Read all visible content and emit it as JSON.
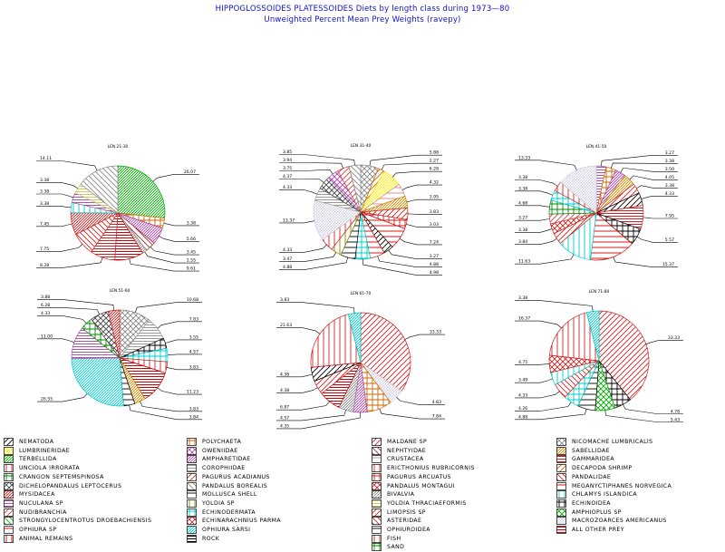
{
  "title": "HIPPOGLOSSOIDES PLATESSOIDES Diets by length class during 1973—80",
  "subtitle": "Unweighted Percent Mean Prey Weights (ravepy)",
  "colors": {
    "NEMATODA": "#000000",
    "LUMBRINERIDAE": "#ffee00",
    "TERBELLIDA": "#00aa00",
    "UNCIOLA IRRORATA": "#cc2222",
    "CRANGON SEPTEMSPINOSA": "#008800",
    "DICHELOPANDALUS LEPTOCERUS": "#444444",
    "MYSIDACEA": "#cc2222",
    "NUCULANA SP": "#aa55aa",
    "NUDIBRANCHIA": "#cc4444",
    "STRONGYLOCENTROTUS DROEBACHIENSIS": "#00aa00",
    "OPHIURA SP": "#cc0000",
    "ANIMAL REMAINS": "#cc0000",
    "POLYCHAETA": "#cc6600",
    "OWENIIDAE": "#aa44aa",
    "AMPHARETIDAE": "#aa44aa",
    "COROPHIIDAE": "#999999",
    "PAGURUS ACADIANUS": "#cc2222",
    "PANDALUS BOREALIS": "#888888",
    "MOLLUSCA SHELL": "#000000",
    "YOLDIA SP": "#888800",
    "ECHINODERMATA": "#00cccc",
    "ECHINARACHNIUS PARMA": "#cc2222",
    "OPHIURA SARSI": "#00cccc",
    "ROCK": "#000000",
    "MALDANE SP": "#cc2222",
    "NEPHTYIDAE": "#993333",
    "CRUSTACEA": "#cc8888",
    "ERICTHONIUS RUBRICORNIS": "#cc2222",
    "PAGURUS ARCUATUS": "#cc2222",
    "PANDALUS MONTAGUI": "#cc2222",
    "BIVALVIA": "#888888",
    "YOLDIA THRACIAEFORMIS": "#cccc66",
    "LIMOPSIS SP": "#cc2222",
    "ASTERIDAE": "#cc2222",
    "OPHIUROIDEA": "#000000",
    "FISH": "#cc2222",
    "SAND": "#008800",
    "NICOMACHE LUMBRICALIS": "#888888",
    "SABELLIDAE": "#cc8800",
    "GAMMARIDEA": "#cc2222",
    "DECAPODA SHRIMP": "#cc6600",
    "PANDALIDAE": "#cc2222",
    "MEGANYCTIPHANES NORVEGICA": "#cc0000",
    "CHLAMYS ISLANDICA": "#00cccc",
    "ECHINOIDEA": "#000000",
    "AMPHIOPLUS SP": "#00aa00",
    "MACROZOARCES AMERICANUS": "#ccccdd",
    "ALL OTHER PREY": "#cc0000"
  },
  "legend": [
    [
      "NEMATODA",
      "LUMBRINERIDAE",
      "TERBELLIDA",
      "UNCIOLA IRRORATA",
      "CRANGON SEPTEMSPINOSA",
      "DICHELOPANDALUS LEPTOCERUS",
      "MYSIDACEA",
      "NUCULANA SP",
      "NUDIBRANCHIA",
      "STRONGYLOCENTROTUS DROEBACHIENSIS",
      "OPHIURA SP",
      "ANIMAL REMAINS"
    ],
    [
      "POLYCHAETA",
      "OWENIIDAE",
      "AMPHARETIDAE",
      "COROPHIIDAE",
      "PAGURUS ACADIANUS",
      "PANDALUS BOREALIS",
      "MOLLUSCA SHELL",
      "YOLDIA SP",
      "ECHINODERMATA",
      "ECHINARACHNIUS PARMA",
      "OPHIURA SARSI",
      "ROCK"
    ],
    [
      "MALDANE SP",
      "NEPHTYIDAE",
      "CRUSTACEA",
      "ERICTHONIUS RUBRICORNIS",
      "PAGURUS ARCUATUS",
      "PANDALUS MONTAGUI",
      "BIVALVIA",
      "YOLDIA THRACIAEFORMIS",
      "LIMOPSIS SP",
      "ASTERIDAE",
      "OPHIUROIDEA",
      "FISH",
      "SAND"
    ],
    [
      "NICOMACHE LUMBRICALIS",
      "SABELLIDAE",
      "GAMMARIDEA",
      "DECAPODA SHRIMP",
      "PANDALIDAE",
      "MEGANYCTIPHANES NORVEGICA",
      "CHLAMYS ISLANDICA",
      "ECHINOIDEA",
      "AMPHIOPLUS SP",
      "MACROZOARCES AMERICANUS",
      "ALL OTHER PREY"
    ]
  ],
  "chart_data": [
    {
      "type": "pie",
      "title": "LEN 21-30",
      "slices": [
        {
          "label": "TERBELLIDA",
          "value": 26.07,
          "text": "26.07"
        },
        {
          "label": "POLYCHAETA",
          "value": 3.38,
          "text": "3.38"
        },
        {
          "label": "AMPHARETIDAE",
          "value": 5.66,
          "text": "5.66"
        },
        {
          "label": "NEPHTYIDAE",
          "value": 3.45,
          "text": "3.45"
        },
        {
          "label": "BIVALVIA",
          "value": 1.55,
          "text": "1.55"
        },
        {
          "label": "ALL OTHER PREY",
          "value": 9.61,
          "text": "9.61"
        },
        {
          "label": "GAMMARIDEA",
          "value": 8.28,
          "text": "8.28"
        },
        {
          "label": "PANDALIDAE",
          "value": 7.75,
          "text": "7.75"
        },
        {
          "label": "MYSIDACEA",
          "value": 7.45,
          "text": "7.45"
        },
        {
          "label": "CHLAMYS ISLANDICA",
          "value": 3.38,
          "text": "3.38"
        },
        {
          "label": "NUCULANA SP",
          "value": 3.38,
          "text": "3.38"
        },
        {
          "label": "YOLDIA THRACIAEFORMIS",
          "value": 3.38,
          "text": "3.38"
        },
        {
          "label": "PANDALUS BOREALIS",
          "value": 14.11,
          "text": "14.11"
        }
      ]
    },
    {
      "type": "pie",
      "title": "LEN 31-40",
      "slices": [
        {
          "label": "NICOMACHE LUMBRICALIS",
          "value": 5.88,
          "text": "5.88"
        },
        {
          "label": "DECAPODA SHRIMP",
          "value": 2.27,
          "text": "2.27"
        },
        {
          "label": "LUMBRINERIDAE",
          "value": 6.28,
          "text": "6.28"
        },
        {
          "label": "CRUSTACEA",
          "value": 4.32,
          "text": "4.32"
        },
        {
          "label": "SABELLIDAE",
          "value": 3.95,
          "text": "3.95"
        },
        {
          "label": "MALDANE SP",
          "value": 3.83,
          "text": "3.83"
        },
        {
          "label": "PAGURUS ARCUATUS",
          "value": 3.03,
          "text": "3.03"
        },
        {
          "label": "MEGANYCTIPHANES NORVEGICA",
          "value": 7.24,
          "text": "7.24"
        },
        {
          "label": "NEMATODA",
          "value": 3.27,
          "text": "3.27"
        },
        {
          "label": "OPHIURA SP",
          "value": 4.88,
          "text": "4.88"
        },
        {
          "label": "ECHINODERMATA",
          "value": 4.98,
          "text": "4.98"
        },
        {
          "label": "MOLLUSCA SHELL",
          "value": 4.88,
          "text": "4.88"
        },
        {
          "label": "YOLDIA SP",
          "value": 3.47,
          "text": "3.47"
        },
        {
          "label": "UNCIOLA IRRORATA",
          "value": 4.33,
          "text": "4.33"
        },
        {
          "label": "MACROZOARCES AMERICANUS",
          "value": 13.37,
          "text": "13.37"
        },
        {
          "label": "COROPHIIDAE",
          "value": 4.33,
          "text": "4.33"
        },
        {
          "label": "DICHELOPANDALUS LEPTOCERUS",
          "value": 4.37,
          "text": "4.37"
        },
        {
          "label": "OWENIIDAE",
          "value": 3.75,
          "text": "3.75"
        },
        {
          "label": "NUDIBRANCHIA",
          "value": 3.94,
          "text": "3.94"
        },
        {
          "label": "PANDALUS BOREALIS",
          "value": 3.85,
          "text": "3.85"
        }
      ]
    },
    {
      "type": "pie",
      "title": "LEN 41-50",
      "slices": [
        {
          "label": "NUCULANA SP",
          "value": 3.27,
          "text": "3.27"
        },
        {
          "label": "POLYCHAETA",
          "value": 3.38,
          "text": "3.38"
        },
        {
          "label": "AMPHARETIDAE",
          "value": 3.5,
          "text": "3.50"
        },
        {
          "label": "SABELLIDAE",
          "value": 4.05,
          "text": "4.05"
        },
        {
          "label": "PAGURUS ACADIANUS",
          "value": 3.38,
          "text": "3.38"
        },
        {
          "label": "NEMATODA",
          "value": 4.33,
          "text": "4.33"
        },
        {
          "label": "GAMMARIDEA",
          "value": 7.95,
          "text": "7.95"
        },
        {
          "label": "ECHINOIDEA",
          "value": 5.57,
          "text": "5.57"
        },
        {
          "label": "MEGANYCTIPHANES NORVEGICA",
          "value": 15.37,
          "text": "15.37"
        },
        {
          "label": "CHLAMYS ISLANDICA",
          "value": 11.63,
          "text": "11.63"
        },
        {
          "label": "LIMOPSIS SP",
          "value": 3.84,
          "text": "3.84"
        },
        {
          "label": "ECHINARACHNIUS PARMA",
          "value": 3.38,
          "text": "3.38"
        },
        {
          "label": "NUDIBRANCHIA",
          "value": 3.27,
          "text": "3.27"
        },
        {
          "label": "CRANGON SEPTEMSPINOSA",
          "value": 4.68,
          "text": "4.68"
        },
        {
          "label": "ECHINODERMATA",
          "value": 3.38,
          "text": "3.38"
        },
        {
          "label": "UNCIOLA IRRORATA",
          "value": 3.38,
          "text": "3.38"
        },
        {
          "label": "MACROZOARCES AMERICANUS",
          "value": 13.33,
          "text": "13.33"
        }
      ]
    },
    {
      "type": "pie",
      "title": "LEN 51-60",
      "slices": [
        {
          "label": "NICOMACHE LUMBRICALIS",
          "value": 10.68,
          "text": "10.68"
        },
        {
          "label": "COROPHIIDAE",
          "value": 7.83,
          "text": "7.83"
        },
        {
          "label": "ECHINOIDEA",
          "value": 3.55,
          "text": "3.55"
        },
        {
          "label": "ECHINODERMATA",
          "value": 4.57,
          "text": "4.57"
        },
        {
          "label": "ERICTHONIUS RUBRICORNIS",
          "value": 3.83,
          "text": "3.83"
        },
        {
          "label": "ALL OTHER PREY",
          "value": 11.23,
          "text": "11.23"
        },
        {
          "label": "SABELLIDAE",
          "value": 3.83,
          "text": "3.83"
        },
        {
          "label": "OPHIUROIDEA",
          "value": 3.84,
          "text": "3.84"
        },
        {
          "label": "OPHIURA SARSI",
          "value": 26.55,
          "text": "26.55"
        },
        {
          "label": "NUCULANA SP",
          "value": 11.0,
          "text": "11.00"
        },
        {
          "label": "CRANGON SEPTEMSPINOSA",
          "value": 4.33,
          "text": "4.33"
        },
        {
          "label": "DICHELOPANDALUS LEPTOCERUS",
          "value": 6.28,
          "text": "6.28"
        },
        {
          "label": "MYSIDACEA",
          "value": 3.88,
          "text": "3.88"
        }
      ]
    },
    {
      "type": "pie",
      "title": "LEN 61-70",
      "slices": [
        {
          "label": "MALDANE SP",
          "value": 33.33,
          "text": "33.33"
        },
        {
          "label": "MACROZOARCES AMERICANUS",
          "value": 4.83,
          "text": "4.83"
        },
        {
          "label": "POLYCHAETA",
          "value": 7.84,
          "text": "7.84"
        },
        {
          "label": "AMPHARETIDAE",
          "value": 4.35,
          "text": "4.35"
        },
        {
          "label": "BIVALVIA",
          "value": 4.57,
          "text": "4.57"
        },
        {
          "label": "ALL OTHER PREY",
          "value": 6.87,
          "text": "6.87"
        },
        {
          "label": "PAGURUS ACADIANUS",
          "value": 4.38,
          "text": "4.38"
        },
        {
          "label": "NEMATODA",
          "value": 4.38,
          "text": "4.38"
        },
        {
          "label": "FISH",
          "value": 21.63,
          "text": "21.63"
        },
        {
          "label": "OPHIURA SARSI",
          "value": 3.83,
          "text": "3.83"
        }
      ]
    },
    {
      "type": "pie",
      "title": "LEN 71-80",
      "slices": [
        {
          "label": "MALDANE SP",
          "value": 33.33,
          "text": "33.33"
        },
        {
          "label": "ECHINOIDEA",
          "value": 4.78,
          "text": "4.78"
        },
        {
          "label": "AMPHIOPLUS SP",
          "value": 5.43,
          "text": "5.43"
        },
        {
          "label": "OPHIUROIDEA",
          "value": 4.88,
          "text": "4.88"
        },
        {
          "label": "ECHINODERMATA",
          "value": 4.26,
          "text": "4.26"
        },
        {
          "label": "PANDALIDAE",
          "value": 4.33,
          "text": "4.33"
        },
        {
          "label": "CHLAMYS ISLANDICA",
          "value": 3.49,
          "text": "3.49"
        },
        {
          "label": "ECHINARACHNIUS PARMA",
          "value": 4.75,
          "text": "4.75"
        },
        {
          "label": "FISH",
          "value": 16.37,
          "text": "16.37"
        },
        {
          "label": "OPHIURA SARSI",
          "value": 3.38,
          "text": "3.38"
        }
      ]
    }
  ]
}
